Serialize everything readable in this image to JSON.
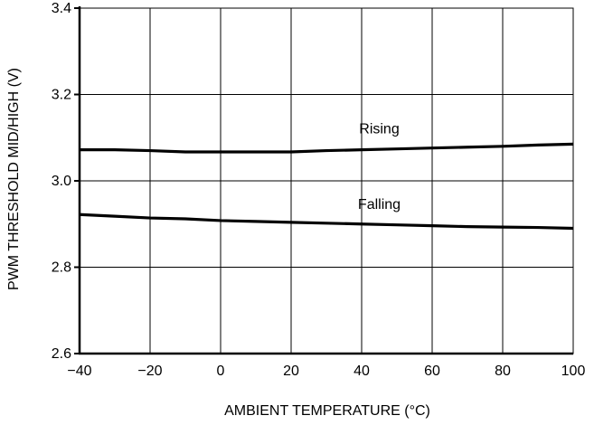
{
  "chart_data": {
    "type": "line",
    "title": "",
    "xlabel": "AMBIENT TEMPERATURE (°C)",
    "ylabel": "PWM THRESHOLD MID/HIGH (V)",
    "xlim": [
      -40,
      100
    ],
    "ylim": [
      2.6,
      3.4
    ],
    "x_ticks": [
      -40,
      -20,
      0,
      20,
      40,
      60,
      80,
      100
    ],
    "y_ticks": [
      2.6,
      2.8,
      3.0,
      3.2,
      3.4
    ],
    "x_tick_labels": [
      "−40",
      "−20",
      "0",
      "20",
      "40",
      "60",
      "80",
      "100"
    ],
    "y_tick_labels": [
      "2.6",
      "2.8",
      "3.0",
      "3.2",
      "3.4"
    ],
    "grid": true,
    "legend": "none",
    "line_color": "#000000",
    "series": [
      {
        "name": "Rising",
        "x": [
          -40,
          -30,
          -20,
          -10,
          0,
          10,
          20,
          30,
          40,
          50,
          60,
          70,
          80,
          90,
          100
        ],
        "y": [
          3.072,
          3.072,
          3.07,
          3.067,
          3.067,
          3.067,
          3.067,
          3.07,
          3.072,
          3.074,
          3.076,
          3.078,
          3.08,
          3.083,
          3.085
        ]
      },
      {
        "name": "Falling",
        "x": [
          -40,
          -30,
          -20,
          -10,
          0,
          10,
          20,
          30,
          40,
          50,
          60,
          70,
          80,
          90,
          100
        ],
        "y": [
          2.922,
          2.918,
          2.914,
          2.912,
          2.908,
          2.906,
          2.904,
          2.902,
          2.9,
          2.898,
          2.896,
          2.894,
          2.893,
          2.892,
          2.89
        ]
      }
    ],
    "annotations": [
      {
        "text": "Rising",
        "x": 45,
        "y": 3.11
      },
      {
        "text": "Falling",
        "x": 45,
        "y": 2.935
      }
    ]
  }
}
